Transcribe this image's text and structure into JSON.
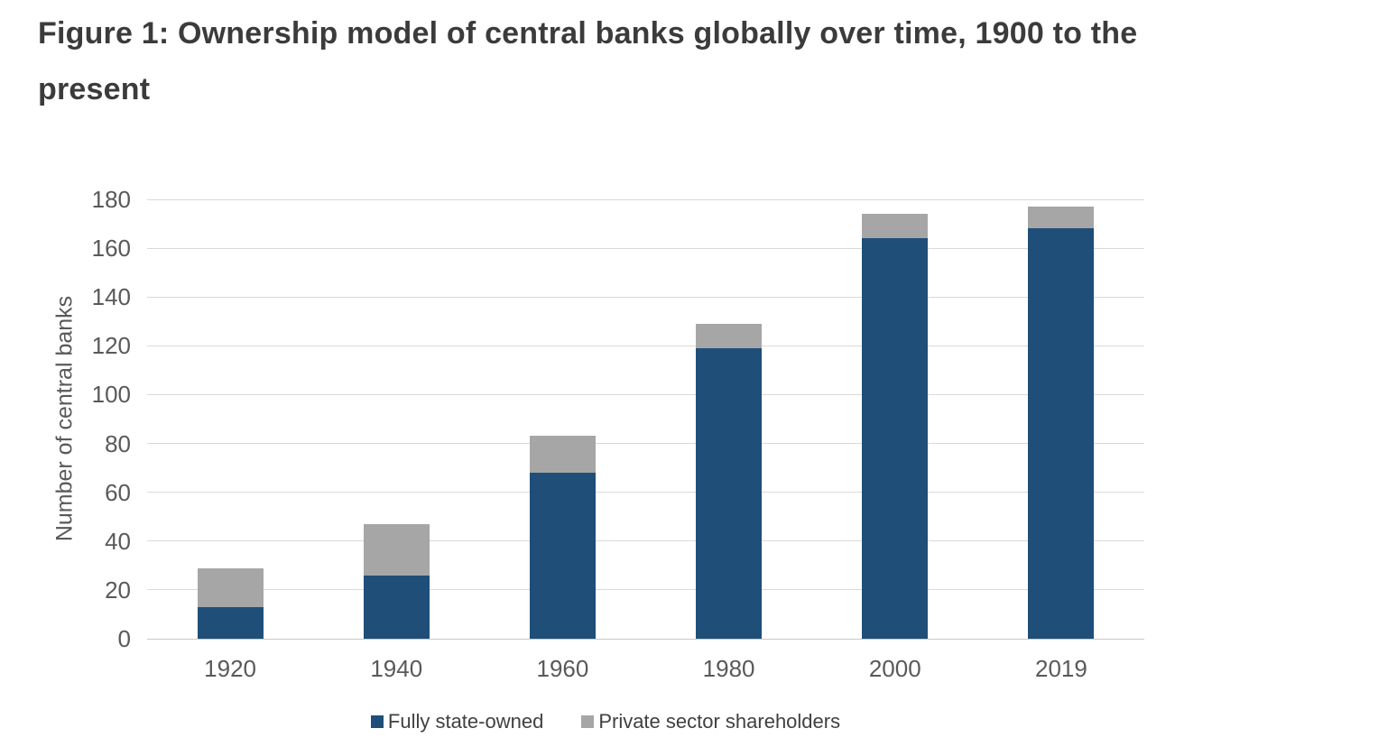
{
  "figure": {
    "title": "Figure 1: Ownership model of central banks globally over time, 1900 to the present",
    "title_line1": "Figure 1: Ownership model of central banks globally over time, 1900 to the",
    "title_line2": "present"
  },
  "chart_data": {
    "type": "bar",
    "stacked": true,
    "title": "Figure 1: Ownership model of central banks globally over time, 1900 to the present",
    "xlabel": "",
    "ylabel": "Number of central banks",
    "categories": [
      "1920",
      "1940",
      "1960",
      "1980",
      "2000",
      "2019"
    ],
    "series": [
      {
        "name": "Fully state-owned",
        "color": "#1F4E79",
        "values": [
          13,
          26,
          68,
          119,
          164,
          168
        ]
      },
      {
        "name": "Private sector shareholders",
        "color": "#A6A6A6",
        "values": [
          16,
          21,
          15,
          10,
          10,
          9
        ]
      }
    ],
    "stack_totals": [
      29,
      47,
      83,
      129,
      174,
      177
    ],
    "ylim": [
      0,
      180
    ],
    "yticks": [
      0,
      20,
      40,
      60,
      80,
      100,
      120,
      140,
      160,
      180
    ],
    "grid": true,
    "legend_position": "bottom"
  },
  "style": {
    "background": "#FFFFFF",
    "gridline_color": "#D9D9D9",
    "axis_line_color": "#C9C9C9",
    "tick_label_color": "#595959",
    "axis_title_color": "#595959",
    "legend_text_color": "#404040",
    "title_color": "#3B3B3B"
  }
}
